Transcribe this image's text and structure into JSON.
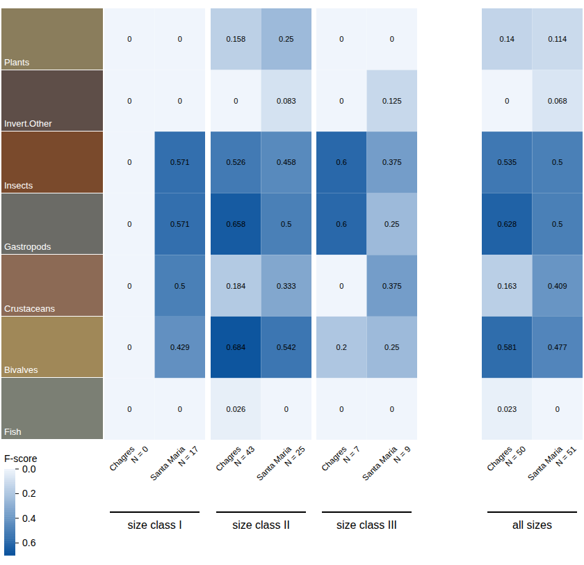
{
  "chart_data": {
    "type": "heatmap",
    "rows": [
      "Plants",
      "Invert.Other",
      "Insects",
      "Gastropods",
      "Crustaceans",
      "Bivalves",
      "Fish"
    ],
    "panels": [
      {
        "title": "size class I",
        "columns": [
          {
            "name": "Chagres",
            "n": "N = 0"
          },
          {
            "name": "Santa Maria",
            "n": "N = 17"
          }
        ],
        "values": [
          [
            0,
            0
          ],
          [
            0,
            0
          ],
          [
            0,
            0.571
          ],
          [
            0,
            0.571
          ],
          [
            0,
            0.5
          ],
          [
            0,
            0.429
          ],
          [
            0,
            0
          ]
        ]
      },
      {
        "title": "size class II",
        "columns": [
          {
            "name": "Chagres",
            "n": "N = 43"
          },
          {
            "name": "Santa Maria",
            "n": "N = 25"
          }
        ],
        "values": [
          [
            0.158,
            0.25
          ],
          [
            0,
            0.083
          ],
          [
            0.526,
            0.458
          ],
          [
            0.658,
            0.5
          ],
          [
            0.184,
            0.333
          ],
          [
            0.684,
            0.542
          ],
          [
            0.026,
            0
          ]
        ]
      },
      {
        "title": "size class III",
        "columns": [
          {
            "name": "Chagres",
            "n": "N = 7"
          },
          {
            "name": "Santa Maria",
            "n": "N = 9"
          }
        ],
        "values": [
          [
            0,
            0
          ],
          [
            0,
            0.125
          ],
          [
            0.6,
            0.375
          ],
          [
            0.6,
            0.25
          ],
          [
            0,
            0.375
          ],
          [
            0.2,
            0.25
          ],
          [
            0,
            0
          ]
        ]
      },
      {
        "title": "all sizes",
        "columns": [
          {
            "name": "Chagres",
            "n": "N = 50"
          },
          {
            "name": "Santa Maria",
            "n": "N = 51"
          }
        ],
        "values": [
          [
            0.14,
            0.114
          ],
          [
            0,
            0.068
          ],
          [
            0.535,
            0.5
          ],
          [
            0.628,
            0.5
          ],
          [
            0.163,
            0.409
          ],
          [
            0.581,
            0.477
          ],
          [
            0.023,
            0
          ]
        ]
      }
    ],
    "colorbar": {
      "title": "F-score",
      "range": [
        0,
        0.7
      ],
      "ticks": [
        {
          "value": 0,
          "label": "0.0"
        },
        {
          "value": 0.2,
          "label": "0.2"
        },
        {
          "value": 0.4,
          "label": "0.4"
        },
        {
          "value": 0.6,
          "label": "0.6"
        }
      ]
    }
  }
}
